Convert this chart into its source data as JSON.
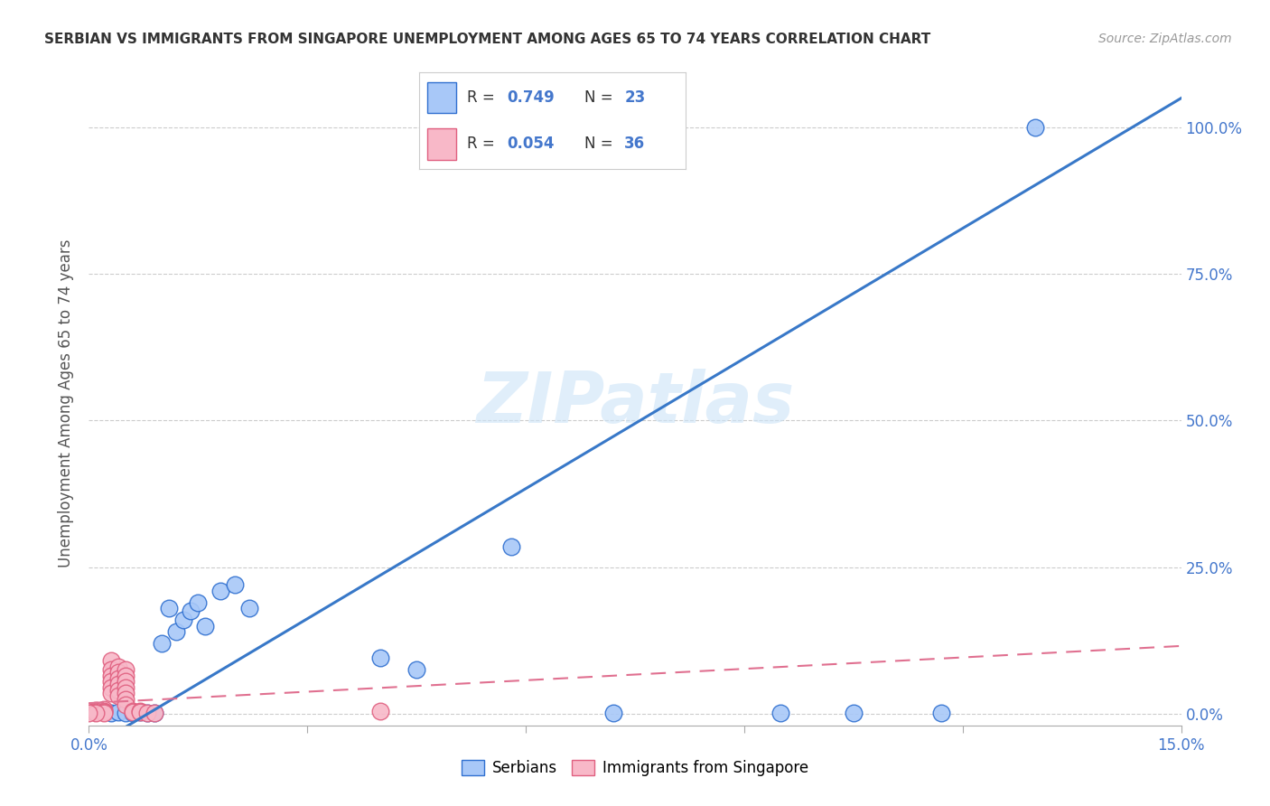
{
  "title": "SERBIAN VS IMMIGRANTS FROM SINGAPORE UNEMPLOYMENT AMONG AGES 65 TO 74 YEARS CORRELATION CHART",
  "source": "Source: ZipAtlas.com",
  "ylabel": "Unemployment Among Ages 65 to 74 years",
  "xlim": [
    0.0,
    0.15
  ],
  "ylim": [
    -0.02,
    1.08
  ],
  "xticks": [
    0.0,
    0.03,
    0.06,
    0.09,
    0.12,
    0.15
  ],
  "xticklabels_edge": [
    "0.0%",
    "15.0%"
  ],
  "yticks": [
    0.0,
    0.25,
    0.5,
    0.75,
    1.0
  ],
  "yticklabels": [
    "0.0%",
    "25.0%",
    "50.0%",
    "75.0%",
    "100.0%"
  ],
  "watermark": "ZIPatlas",
  "serbian_color": "#a8c8f8",
  "singapore_color": "#f8b8c8",
  "serbian_edge_color": "#3070d0",
  "singapore_edge_color": "#e06080",
  "serbian_line_color": "#3878c8",
  "singapore_line_color": "#e07090",
  "serbian_slope": 7.4,
  "serbian_intercept": -0.06,
  "singapore_slope": 0.65,
  "singapore_intercept": 0.018,
  "tick_color": "#aaaaaa",
  "grid_color": "#cccccc",
  "ylabel_color": "#555555",
  "tick_label_color": "#4477cc",
  "title_color": "#333333",
  "source_color": "#999999",
  "watermark_color": "#cce4f8",
  "serbian_points": [
    [
      0.001,
      0.003
    ],
    [
      0.003,
      0.001
    ],
    [
      0.004,
      0.003
    ],
    [
      0.005,
      0.001
    ],
    [
      0.006,
      0.001
    ],
    [
      0.007,
      0.003
    ],
    [
      0.008,
      0.001
    ],
    [
      0.009,
      0.001
    ],
    [
      0.01,
      0.12
    ],
    [
      0.011,
      0.18
    ],
    [
      0.012,
      0.14
    ],
    [
      0.013,
      0.16
    ],
    [
      0.014,
      0.175
    ],
    [
      0.015,
      0.19
    ],
    [
      0.016,
      0.15
    ],
    [
      0.018,
      0.21
    ],
    [
      0.02,
      0.22
    ],
    [
      0.022,
      0.18
    ],
    [
      0.04,
      0.095
    ],
    [
      0.045,
      0.075
    ],
    [
      0.058,
      0.285
    ],
    [
      0.072,
      0.002
    ],
    [
      0.095,
      0.002
    ],
    [
      0.105,
      0.002
    ],
    [
      0.117,
      0.002
    ],
    [
      0.13,
      1.0
    ]
  ],
  "singapore_points": [
    [
      0.0,
      0.005
    ],
    [
      0.001,
      0.006
    ],
    [
      0.001,
      0.004
    ],
    [
      0.001,
      0.003
    ],
    [
      0.002,
      0.008
    ],
    [
      0.002,
      0.005
    ],
    [
      0.002,
      0.003
    ],
    [
      0.002,
      0.002
    ],
    [
      0.003,
      0.09
    ],
    [
      0.003,
      0.075
    ],
    [
      0.003,
      0.065
    ],
    [
      0.003,
      0.055
    ],
    [
      0.003,
      0.045
    ],
    [
      0.003,
      0.035
    ],
    [
      0.004,
      0.08
    ],
    [
      0.004,
      0.07
    ],
    [
      0.004,
      0.06
    ],
    [
      0.004,
      0.05
    ],
    [
      0.004,
      0.04
    ],
    [
      0.004,
      0.03
    ],
    [
      0.005,
      0.075
    ],
    [
      0.005,
      0.065
    ],
    [
      0.005,
      0.055
    ],
    [
      0.005,
      0.045
    ],
    [
      0.005,
      0.035
    ],
    [
      0.005,
      0.025
    ],
    [
      0.005,
      0.015
    ],
    [
      0.006,
      0.005
    ],
    [
      0.006,
      0.003
    ],
    [
      0.007,
      0.005
    ],
    [
      0.007,
      0.003
    ],
    [
      0.008,
      0.002
    ],
    [
      0.009,
      0.001
    ],
    [
      0.001,
      0.001
    ],
    [
      0.0,
      0.001
    ],
    [
      0.04,
      0.005
    ]
  ]
}
